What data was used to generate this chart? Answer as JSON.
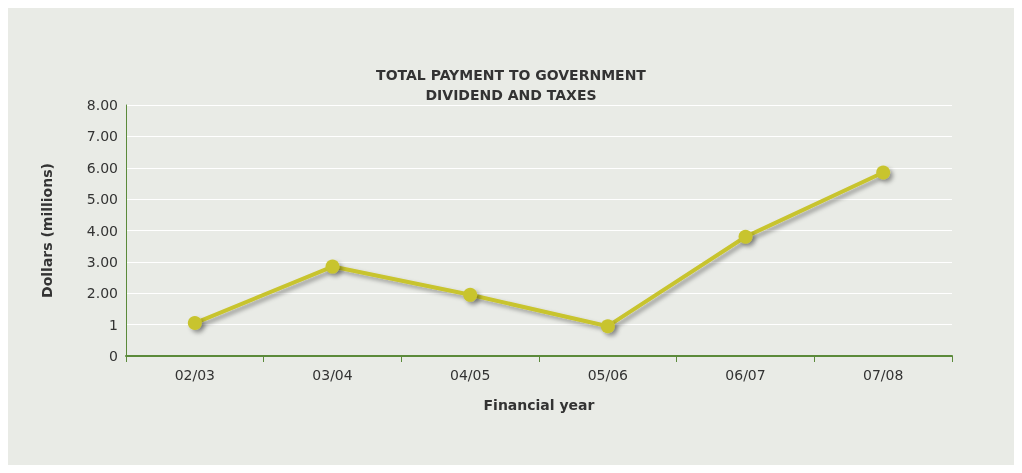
{
  "chart_data": {
    "type": "line",
    "title": "TOTAL PAYMENT TO GOVERNMENT\nDIVIDEND AND TAXES",
    "xlabel": "Financial year",
    "ylabel": "Dollars (millions)",
    "categories": [
      "02/03",
      "03/04",
      "04/05",
      "05/06",
      "06/07",
      "07/08"
    ],
    "series": [
      {
        "color": "#c8c42e",
        "values": [
          1.05,
          2.85,
          1.95,
          0.95,
          3.8,
          5.85
        ]
      }
    ],
    "ylim": [
      0,
      8
    ],
    "yticks": [
      0,
      1,
      {
        "value": 2,
        "label": "2.00"
      },
      {
        "value": 3,
        "label": "3.00"
      },
      {
        "value": 4,
        "label": "4.00"
      },
      {
        "value": 5,
        "label": "5.00"
      },
      {
        "value": 6,
        "label": "6.00"
      },
      {
        "value": 7,
        "label": "7.00"
      },
      {
        "value": 8,
        "label": "8.00"
      }
    ],
    "grid": "y",
    "marker": "circle",
    "line_style": "solid"
  }
}
